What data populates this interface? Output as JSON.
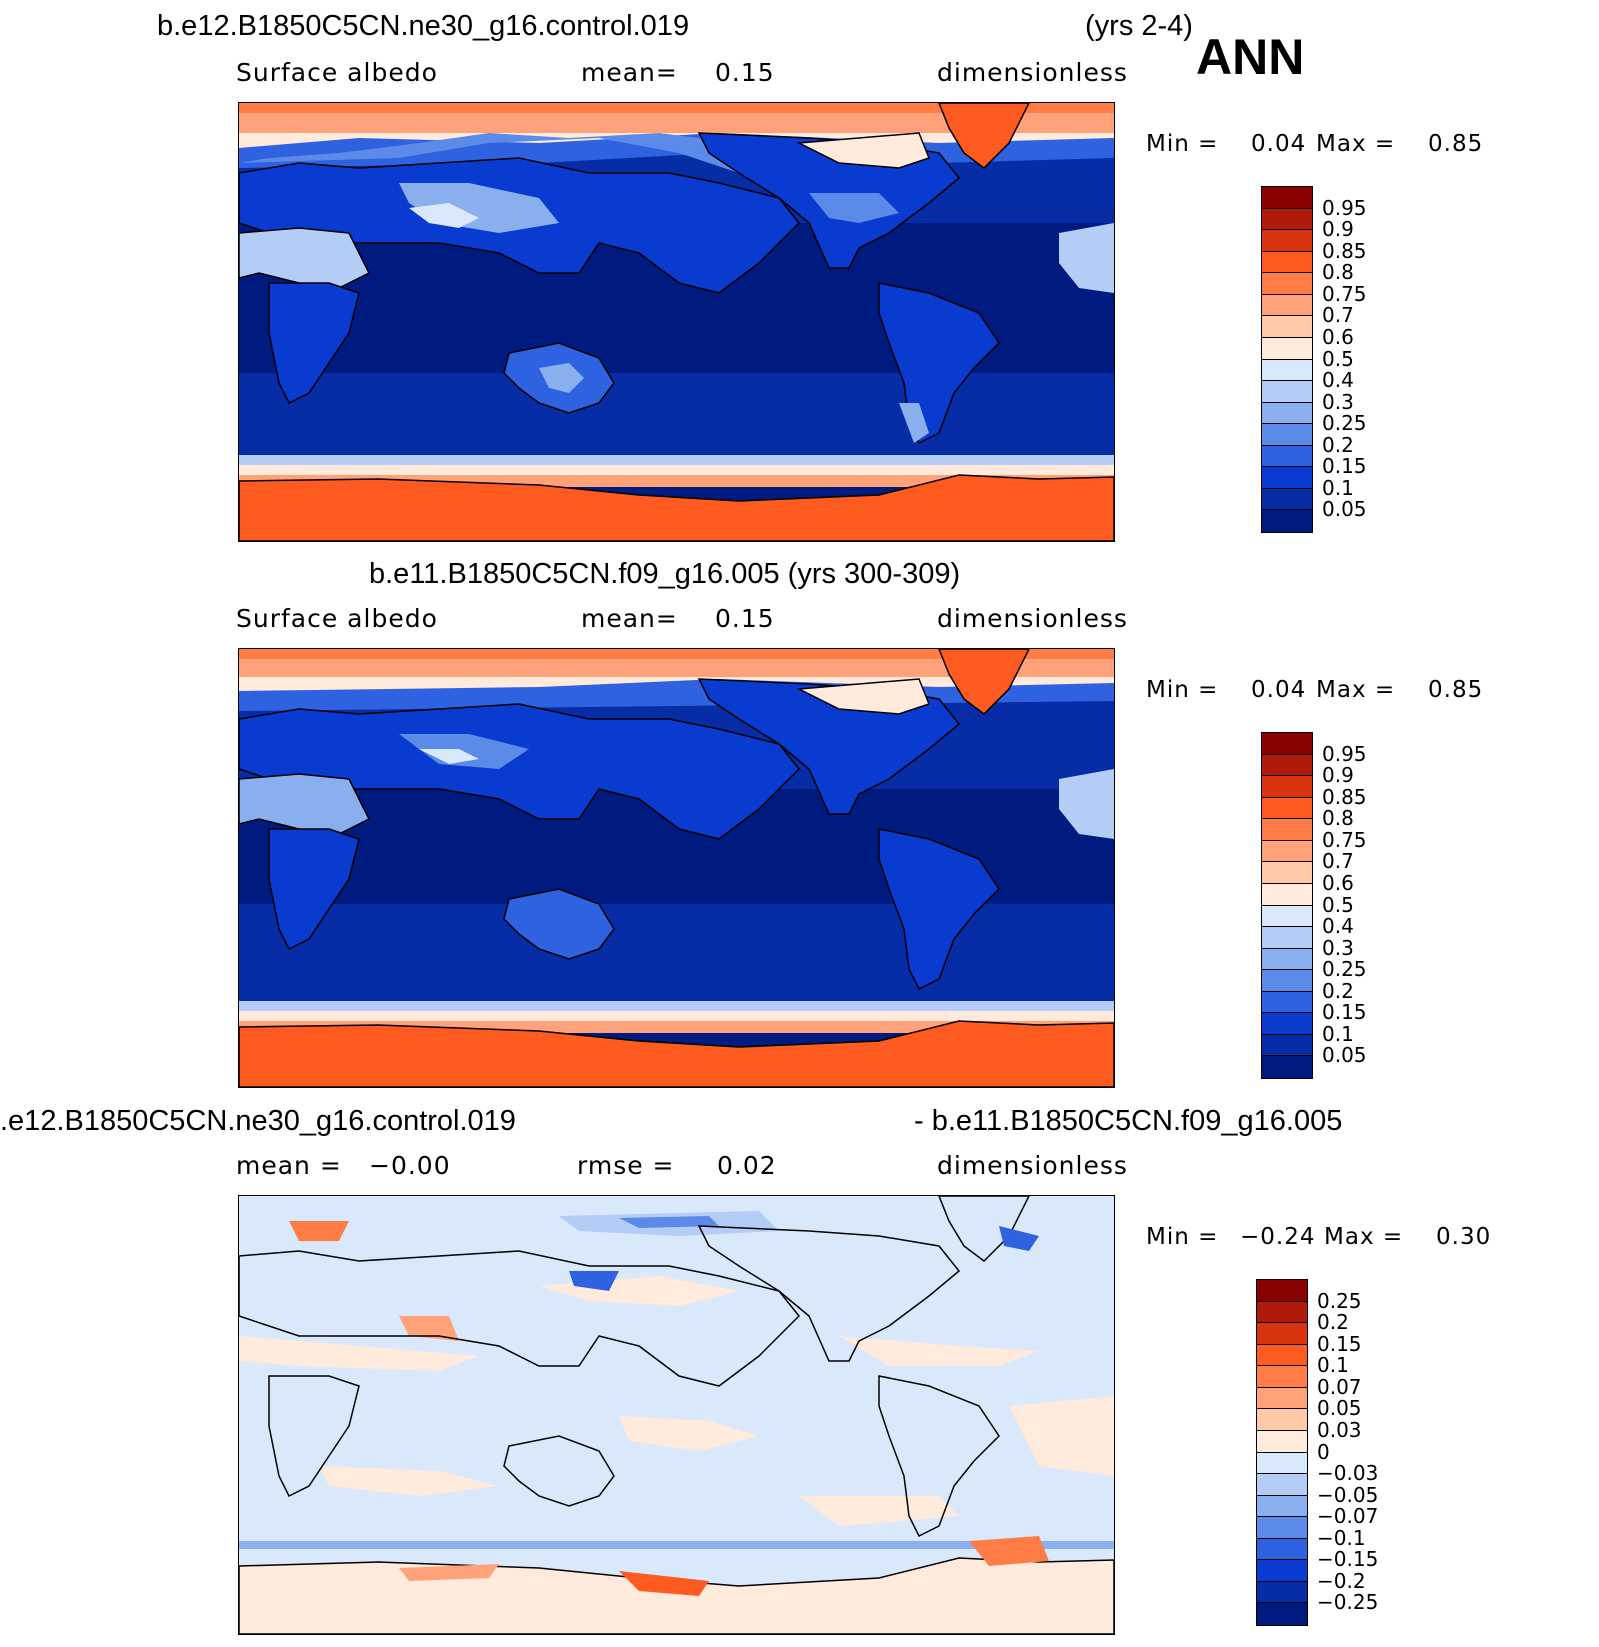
{
  "header": {
    "case1": "b.e12.B1850C5CN.ne30_g16.control.019",
    "years1": "(yrs 2-4)",
    "season": "ANN",
    "case2": "b.e11.B1850C5CN.f09_g16.005 (yrs 300-309)",
    "diff_left": ".e12.B1850C5CN.ne30_g16.control.019",
    "diff_right": "- b.e11.B1850C5CN.f09_g16.005"
  },
  "panels": [
    {
      "variable": "Surface albedo",
      "mean_label": "mean=",
      "mean_value": "0.15",
      "units": "dimensionless",
      "min_label": "Min =",
      "min_value": "0.04",
      "max_label": "Max =",
      "max_value": "0.85"
    },
    {
      "variable": "Surface albedo",
      "mean_label": "mean=",
      "mean_value": "0.15",
      "units": "dimensionless",
      "min_label": "Min =",
      "min_value": "0.04",
      "max_label": "Max =",
      "max_value": "0.85"
    },
    {
      "mean_label": "mean =",
      "mean_value": "−0.00",
      "rmse_label": "rmse =",
      "rmse_value": "0.02",
      "units": "dimensionless",
      "min_label": "Min =",
      "min_value": "−0.24",
      "max_label": "Max =",
      "max_value": "0.30"
    }
  ],
  "colorbar_abs": {
    "labels": [
      "0.95",
      "0.9",
      "0.85",
      "0.8",
      "0.75",
      "0.7",
      "0.6",
      "0.5",
      "0.4",
      "0.3",
      "0.25",
      "0.2",
      "0.15",
      "0.1",
      "0.05"
    ],
    "colors": [
      "#8b0000",
      "#b01a0a",
      "#d83410",
      "#ff5a1f",
      "#ff7d45",
      "#ffa27a",
      "#ffc9a8",
      "#ffeadb",
      "#d9e8fb",
      "#b3cdf6",
      "#8aafef",
      "#5c8ae8",
      "#2e62e0",
      "#0a3bd1",
      "#062ca6",
      "#001b80"
    ]
  },
  "colorbar_diff": {
    "labels": [
      "0.25",
      "0.2",
      "0.15",
      "0.1",
      "0.07",
      "0.05",
      "0.03",
      "0",
      "−0.03",
      "−0.05",
      "−0.07",
      "−0.1",
      "−0.15",
      "−0.2",
      "−0.25"
    ],
    "colors": [
      "#8b0000",
      "#b01a0a",
      "#d83410",
      "#ff5a1f",
      "#ff7d45",
      "#ffa27a",
      "#ffc9a8",
      "#ffeadb",
      "#d9e8fb",
      "#b3cdf6",
      "#8aafef",
      "#5c8ae8",
      "#2e62e0",
      "#0a3bd1",
      "#062ca6",
      "#001b80"
    ]
  }
}
